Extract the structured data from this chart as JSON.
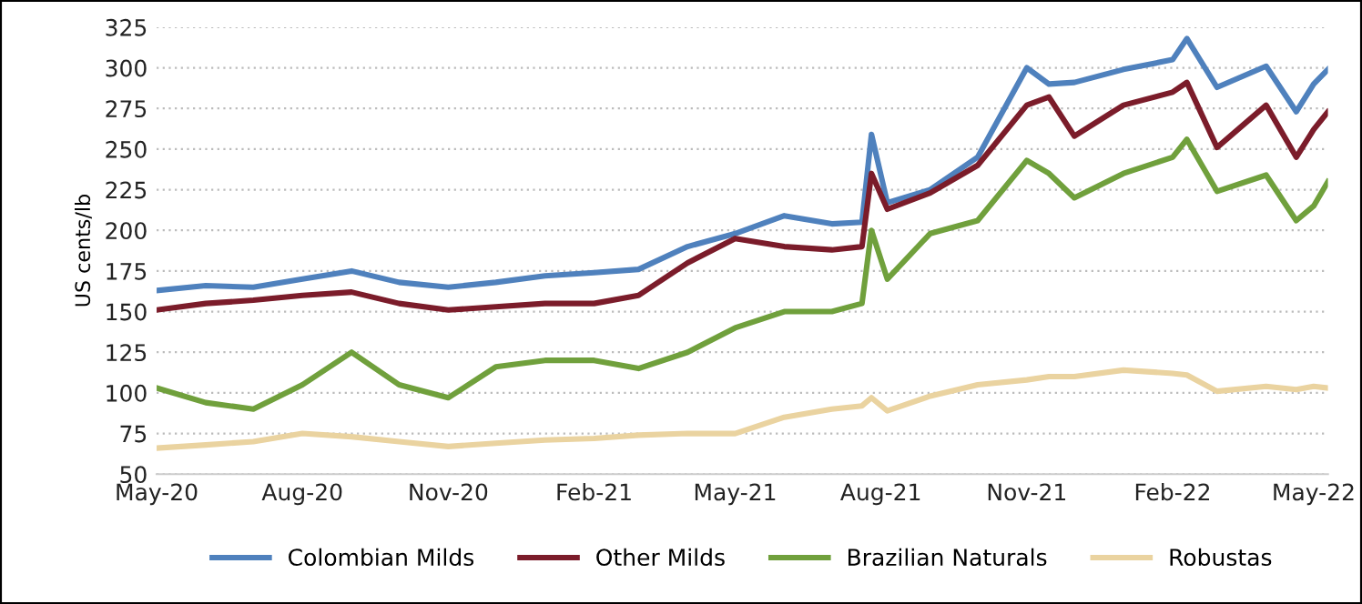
{
  "chart_data": {
    "type": "line",
    "ylabel": "US cents/lb",
    "ylim": [
      50,
      325
    ],
    "yticks": [
      50,
      75,
      100,
      125,
      150,
      175,
      200,
      225,
      250,
      275,
      300,
      325
    ],
    "xlim": [
      "2020-05-01",
      "2022-05-10"
    ],
    "xticks": [
      {
        "value": "2020-05-01",
        "label": "May-20"
      },
      {
        "value": "2020-08-01",
        "label": "Aug-20"
      },
      {
        "value": "2020-11-01",
        "label": "Nov-20"
      },
      {
        "value": "2021-02-01",
        "label": "Feb-21"
      },
      {
        "value": "2021-05-01",
        "label": "May-21"
      },
      {
        "value": "2021-08-01",
        "label": "Aug-21"
      },
      {
        "value": "2021-11-01",
        "label": "Nov-21"
      },
      {
        "value": "2022-02-01",
        "label": "Feb-22"
      },
      {
        "value": "2022-05-01",
        "label": "May-22"
      }
    ],
    "grid": "y",
    "legend": "bottom",
    "line_style": "solid",
    "marker": "none",
    "x": [
      "2020-05-01",
      "2020-06-01",
      "2020-07-01",
      "2020-08-01",
      "2020-09-01",
      "2020-10-01",
      "2020-11-01",
      "2020-12-01",
      "2021-01-01",
      "2021-02-01",
      "2021-03-01",
      "2021-04-01",
      "2021-05-01",
      "2021-06-01",
      "2021-07-01",
      "2021-07-20",
      "2021-07-26",
      "2021-08-05",
      "2021-09-01",
      "2021-10-01",
      "2021-11-01",
      "2021-11-15",
      "2021-12-01",
      "2022-01-01",
      "2022-02-01",
      "2022-02-10",
      "2022-03-01",
      "2022-04-01",
      "2022-04-20",
      "2022-05-01",
      "2022-05-10"
    ],
    "series": [
      {
        "name": "Colombian Milds",
        "color": "#4f81bd",
        "values": [
          163,
          166,
          165,
          170,
          175,
          168,
          165,
          168,
          172,
          174,
          176,
          190,
          198,
          209,
          204,
          205,
          259,
          217,
          225,
          245,
          300,
          290,
          291,
          299,
          305,
          318,
          288,
          301,
          273,
          290,
          299
        ]
      },
      {
        "name": "Other Milds",
        "color": "#7b1c2a",
        "values": [
          151,
          155,
          157,
          160,
          162,
          155,
          151,
          153,
          155,
          155,
          160,
          180,
          195,
          190,
          188,
          190,
          235,
          213,
          223,
          240,
          277,
          282,
          258,
          277,
          285,
          291,
          251,
          277,
          245,
          262,
          273
        ]
      },
      {
        "name": "Brazilian Naturals",
        "color": "#70a03c",
        "values": [
          103,
          94,
          90,
          105,
          125,
          105,
          97,
          116,
          120,
          120,
          115,
          125,
          140,
          150,
          150,
          155,
          200,
          170,
          198,
          206,
          243,
          235,
          220,
          235,
          245,
          256,
          224,
          234,
          206,
          215,
          230
        ]
      },
      {
        "name": "Robustas",
        "color": "#ead3a0",
        "values": [
          66,
          68,
          70,
          75,
          73,
          70,
          67,
          69,
          71,
          72,
          74,
          75,
          75,
          85,
          90,
          92,
          97,
          89,
          98,
          105,
          108,
          110,
          110,
          114,
          112,
          111,
          101,
          104,
          102,
          104,
          103
        ]
      }
    ]
  }
}
